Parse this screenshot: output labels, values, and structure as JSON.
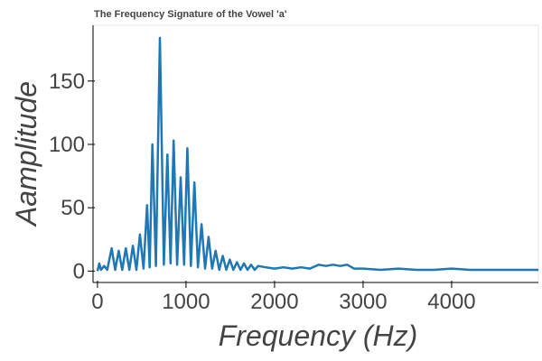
{
  "chart_data": {
    "type": "line",
    "title": "The Frequency Signature of the Vowel 'a'",
    "x_label": "Frequency (Hz)",
    "y_label": "Aamplitude",
    "x": [
      0,
      20,
      40,
      75,
      110,
      160,
      200,
      240,
      280,
      320,
      360,
      400,
      440,
      480,
      520,
      560,
      590,
      620,
      660,
      705,
      750,
      790,
      825,
      860,
      900,
      940,
      978,
      1015,
      1055,
      1095,
      1135,
      1175,
      1215,
      1255,
      1295,
      1335,
      1375,
      1415,
      1455,
      1495,
      1535,
      1575,
      1615,
      1655,
      1695,
      1735,
      1775,
      1815,
      1900,
      2000,
      2100,
      2200,
      2300,
      2400,
      2500,
      2580,
      2660,
      2740,
      2820,
      2900,
      3000,
      3200,
      3400,
      3600,
      3800,
      4000,
      4200,
      4400,
      4600,
      4800,
      4980
    ],
    "values": [
      0,
      6,
      1,
      4,
      1,
      18,
      1,
      16,
      1,
      18,
      1,
      20,
      1,
      29,
      2,
      52,
      3,
      100,
      4,
      184,
      5,
      92,
      6,
      103,
      5,
      74,
      5,
      97,
      4,
      70,
      3,
      37,
      2,
      27,
      2,
      16,
      1,
      12,
      1,
      9,
      1,
      7,
      1,
      6,
      1,
      5,
      1,
      4,
      3,
      2,
      3,
      2,
      3,
      2,
      5,
      4,
      5,
      4,
      5,
      2,
      2,
      1,
      2,
      1,
      1,
      2,
      1,
      1,
      1,
      1,
      1
    ],
    "color": "#1f77b4",
    "xlim": [
      -50,
      4980
    ],
    "ylim": [
      -9,
      194
    ],
    "xticks": [
      0,
      1000,
      2000,
      3000,
      4000
    ],
    "yticks": [
      0,
      50,
      100,
      150
    ]
  }
}
